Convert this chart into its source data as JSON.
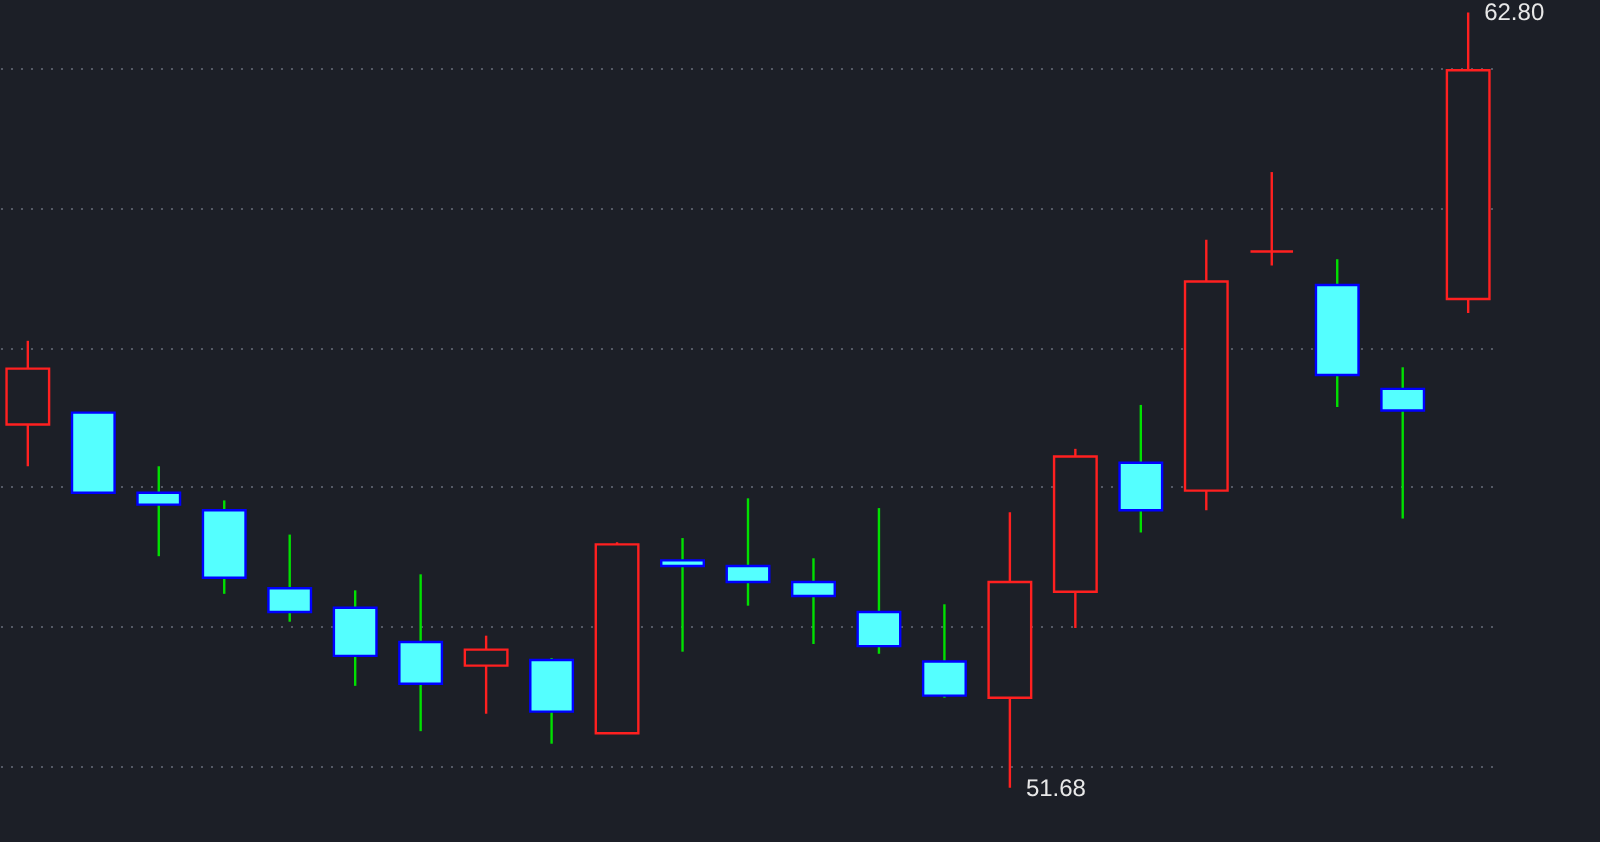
{
  "chart_data": {
    "type": "candlestick",
    "categories": [
      null,
      null,
      null,
      null,
      null,
      null,
      null,
      null,
      null,
      null,
      null,
      null,
      null,
      null,
      null,
      null,
      null,
      null,
      null,
      null,
      null,
      null,
      null
    ],
    "ohlc": [
      [
        56.89,
        58.09,
        56.29,
        57.69
      ],
      [
        57.06,
        57.06,
        55.91,
        55.91
      ],
      [
        55.91,
        56.29,
        55.0,
        55.74
      ],
      [
        55.66,
        55.8,
        54.46,
        54.69
      ],
      [
        54.54,
        55.31,
        54.06,
        54.2
      ],
      [
        54.26,
        54.51,
        53.14,
        53.57
      ],
      [
        53.77,
        54.74,
        52.49,
        53.17
      ],
      [
        53.43,
        53.86,
        52.74,
        53.66
      ],
      [
        53.51,
        53.54,
        52.31,
        52.77
      ],
      [
        52.46,
        55.2,
        52.46,
        55.17
      ],
      [
        54.94,
        55.26,
        53.63,
        54.86
      ],
      [
        54.86,
        55.83,
        54.29,
        54.63
      ],
      [
        54.63,
        54.97,
        53.74,
        54.43
      ],
      [
        54.2,
        55.69,
        53.6,
        53.71
      ],
      [
        53.49,
        54.31,
        52.97,
        53.0
      ],
      [
        52.97,
        55.63,
        51.68,
        54.63
      ],
      [
        54.49,
        56.54,
        53.97,
        56.43
      ],
      [
        56.34,
        57.17,
        55.34,
        55.66
      ],
      [
        55.94,
        59.54,
        55.66,
        58.94
      ],
      [
        59.37,
        60.51,
        59.17,
        59.37
      ],
      [
        58.89,
        59.26,
        57.14,
        57.6
      ],
      [
        57.4,
        57.71,
        55.54,
        57.09
      ],
      [
        58.69,
        62.8,
        58.49,
        61.97
      ]
    ],
    "ylim": [
      50.9,
      62.95
    ],
    "yticks": [
      {
        "value": 52,
        "label": null
      },
      {
        "value": 54,
        "label": null
      },
      {
        "value": 56,
        "label": null
      },
      {
        "value": 58,
        "label": null
      },
      {
        "value": 60,
        "label": null
      },
      {
        "value": 62,
        "label": null
      }
    ],
    "grid": "y",
    "annotations": [
      "62.80",
      "51.68"
    ]
  }
}
